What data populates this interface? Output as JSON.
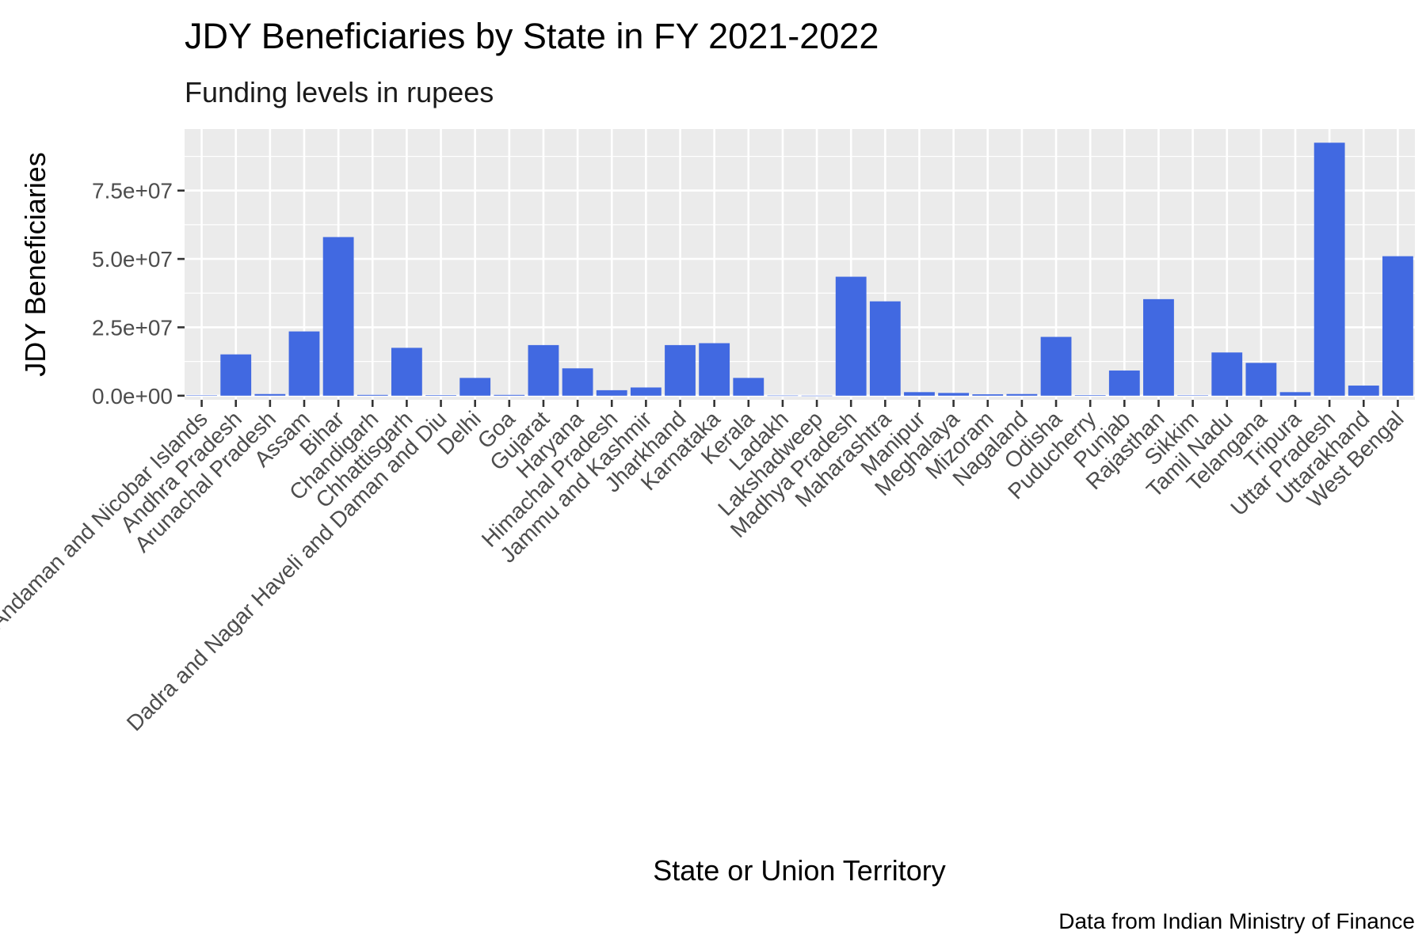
{
  "chart_data": {
    "type": "bar",
    "title": "JDY Beneficiaries by State in FY 2021-2022",
    "subtitle": "Funding levels in rupees",
    "xlabel": "State or Union Territory",
    "ylabel": "JDY Beneficiaries",
    "caption": "Data from Indian Ministry of Finance",
    "ylim": [
      -1500000,
      97500000
    ],
    "yticks": [
      0,
      25000000,
      50000000,
      75000000
    ],
    "ytick_labels": [
      "0.0e+00",
      "2.5e+07",
      "5.0e+07",
      "7.5e+07"
    ],
    "grid": true,
    "bar_color": "#4169E1",
    "panel_color": "#EBEBEB",
    "categories": [
      "Andaman and Nicobar Islands",
      "Andhra Pradesh",
      "Arunachal Pradesh",
      "Assam",
      "Bihar",
      "Chandigarh",
      "Chhattisgarh",
      "Dadra and Nagar Haveli and Daman and Diu",
      "Delhi",
      "Goa",
      "Gujarat",
      "Haryana",
      "Himachal Pradesh",
      "Jammu and Kashmir",
      "Jharkhand",
      "Karnataka",
      "Kerala",
      "Ladakh",
      "Lakshadweep",
      "Madhya Pradesh",
      "Maharashtra",
      "Manipur",
      "Meghalaya",
      "Mizoram",
      "Nagaland",
      "Odisha",
      "Puducherry",
      "Punjab",
      "Rajasthan",
      "Sikkim",
      "Tamil Nadu",
      "Telangana",
      "Tripura",
      "Uttar Pradesh",
      "Uttarakhand",
      "West Bengal"
    ],
    "values": [
      100000,
      15100000,
      600000,
      23500000,
      58000000,
      300000,
      17500000,
      200000,
      6500000,
      300000,
      18500000,
      10000000,
      2000000,
      3000000,
      18500000,
      19200000,
      6500000,
      50000,
      10000,
      43500000,
      34500000,
      1300000,
      1000000,
      500000,
      600000,
      21500000,
      200000,
      9200000,
      35300000,
      100000,
      15800000,
      12000000,
      1300000,
      92500000,
      3700000,
      51000000
    ]
  }
}
